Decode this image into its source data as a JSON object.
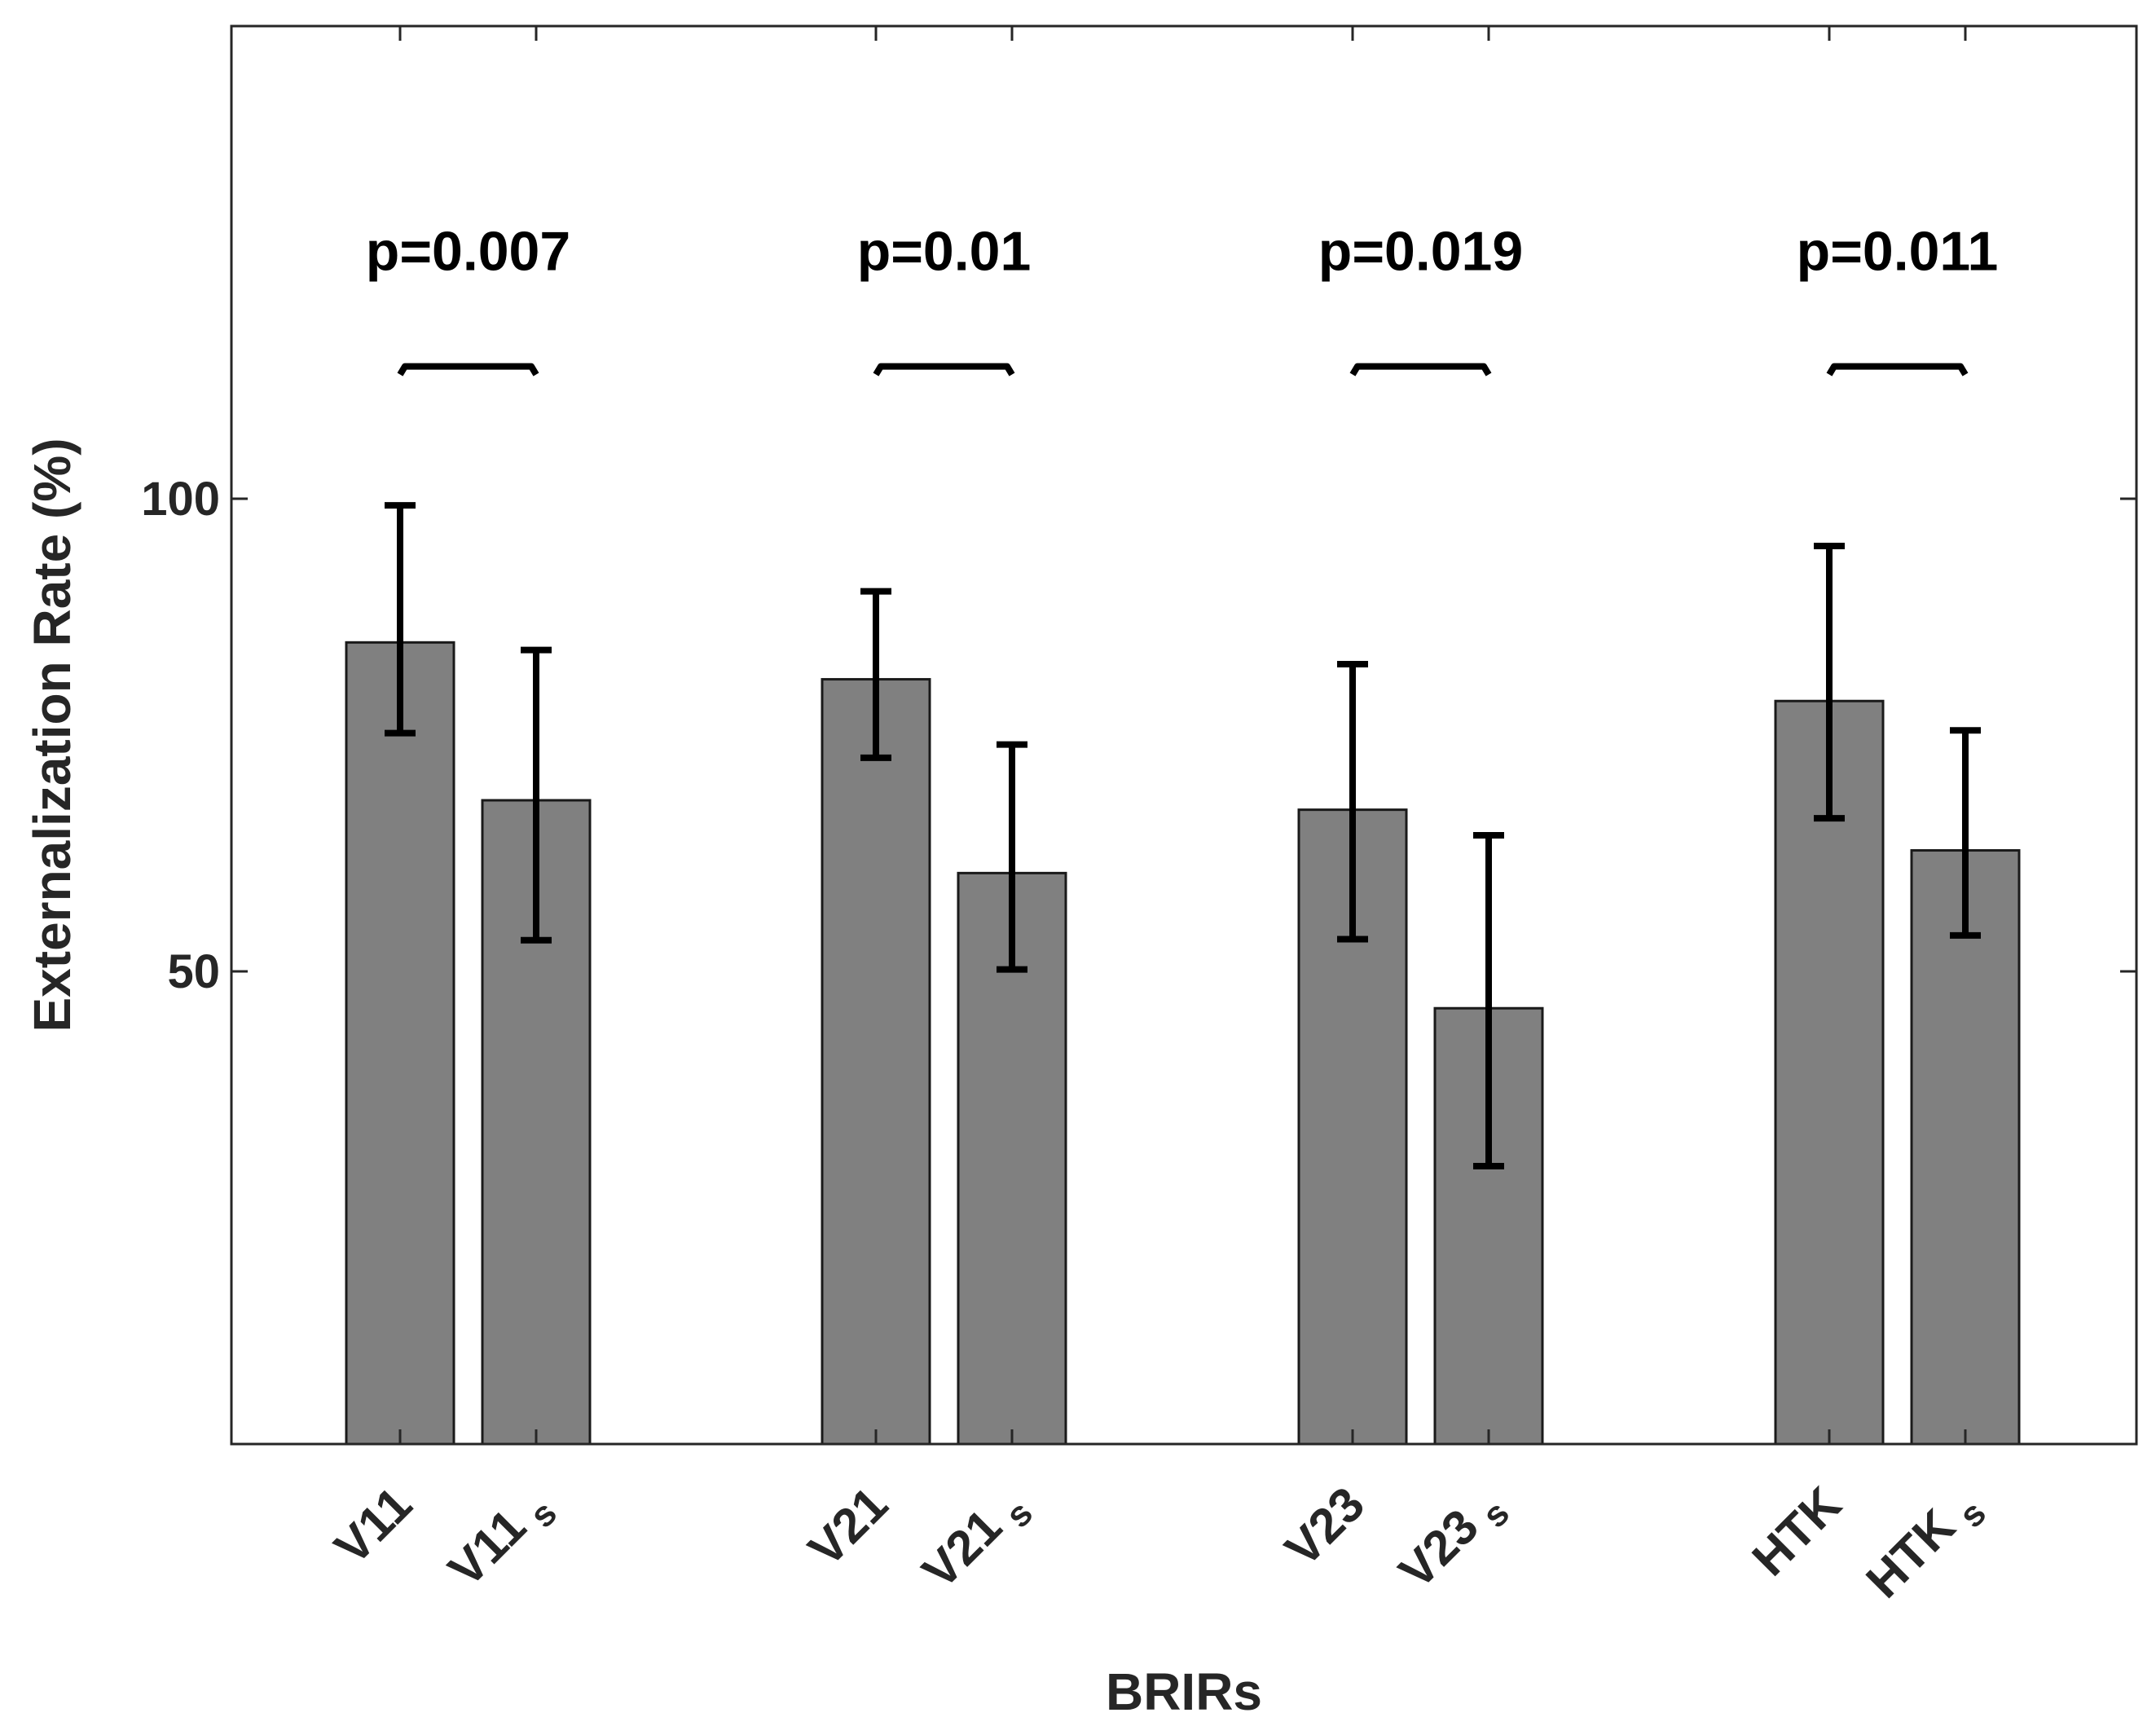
{
  "chart_data": {
    "type": "bar",
    "title": "",
    "xlabel": "BRIRs",
    "ylabel": "Externalization Rate (%)",
    "ylim": [
      0,
      150
    ],
    "yticks": [
      50,
      100
    ],
    "grid": false,
    "legend": "none",
    "categories": [
      {
        "name": "V11",
        "sub": ""
      },
      {
        "name": "V11",
        "sub": "s"
      },
      {
        "name": "V21",
        "sub": ""
      },
      {
        "name": "V21",
        "sub": "s"
      },
      {
        "name": "V23",
        "sub": ""
      },
      {
        "name": "V23",
        "sub": "s"
      },
      {
        "name": "HTK",
        "sub": ""
      },
      {
        "name": "HTK",
        "sub": "s"
      }
    ],
    "values": [
      84.8,
      68.1,
      80.9,
      60.4,
      67.1,
      46.1,
      78.6,
      62.8
    ],
    "error_low": [
      75.2,
      53.3,
      72.6,
      50.2,
      53.4,
      29.4,
      66.2,
      53.8
    ],
    "error_high": [
      99.3,
      84.0,
      90.2,
      74.0,
      82.5,
      64.4,
      95.0,
      75.5
    ],
    "significance": [
      {
        "pair": [
          0,
          1
        ],
        "label": "p=0.007",
        "bracket_y": 114
      },
      {
        "pair": [
          2,
          3
        ],
        "label": "p=0.01",
        "bracket_y": 114
      },
      {
        "pair": [
          4,
          5
        ],
        "label": "p=0.019",
        "bracket_y": 114
      },
      {
        "pair": [
          6,
          7
        ],
        "label": "p=0.011",
        "bracket_y": 114
      }
    ],
    "colors": {
      "bar": "#808080",
      "bar_edge": "#1a1a1a",
      "error": "#000000",
      "axis": "#262626"
    }
  }
}
